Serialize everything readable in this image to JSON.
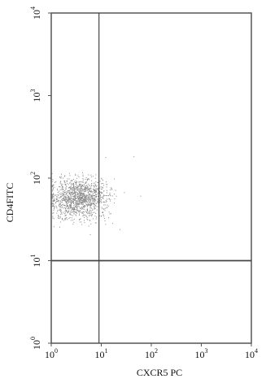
{
  "chart_data": {
    "type": "scatter",
    "xlabel": "CXCR5 PC",
    "ylabel": "CD4FITC",
    "xscale": "log",
    "yscale": "log",
    "xlim": [
      1,
      10000
    ],
    "ylim": [
      1,
      10000
    ],
    "grid": false,
    "legend": "none",
    "colors": {
      "axis": "#555555",
      "gate": "#444444",
      "points": "#8a8a8a"
    },
    "x_ticks": [
      {
        "base": "10",
        "exp": "0",
        "value": 1
      },
      {
        "base": "10",
        "exp": "1",
        "value": 10
      },
      {
        "base": "10",
        "exp": "2",
        "value": 100
      },
      {
        "base": "10",
        "exp": "3",
        "value": 1000
      },
      {
        "base": "10",
        "exp": "4",
        "value": 10000
      }
    ],
    "y_ticks": [
      {
        "base": "10",
        "exp": "0",
        "value": 1
      },
      {
        "base": "10",
        "exp": "1",
        "value": 10
      },
      {
        "base": "10",
        "exp": "2",
        "value": 100
      },
      {
        "base": "10",
        "exp": "3",
        "value": 1000
      },
      {
        "base": "10",
        "exp": "4",
        "value": 10000
      }
    ],
    "gates": {
      "x_value": 9,
      "y_value": 10
    },
    "population": {
      "x_range": [
        1,
        20
      ],
      "y_range": [
        25,
        120
      ],
      "center": {
        "x": 3.5,
        "y": 58
      }
    }
  }
}
